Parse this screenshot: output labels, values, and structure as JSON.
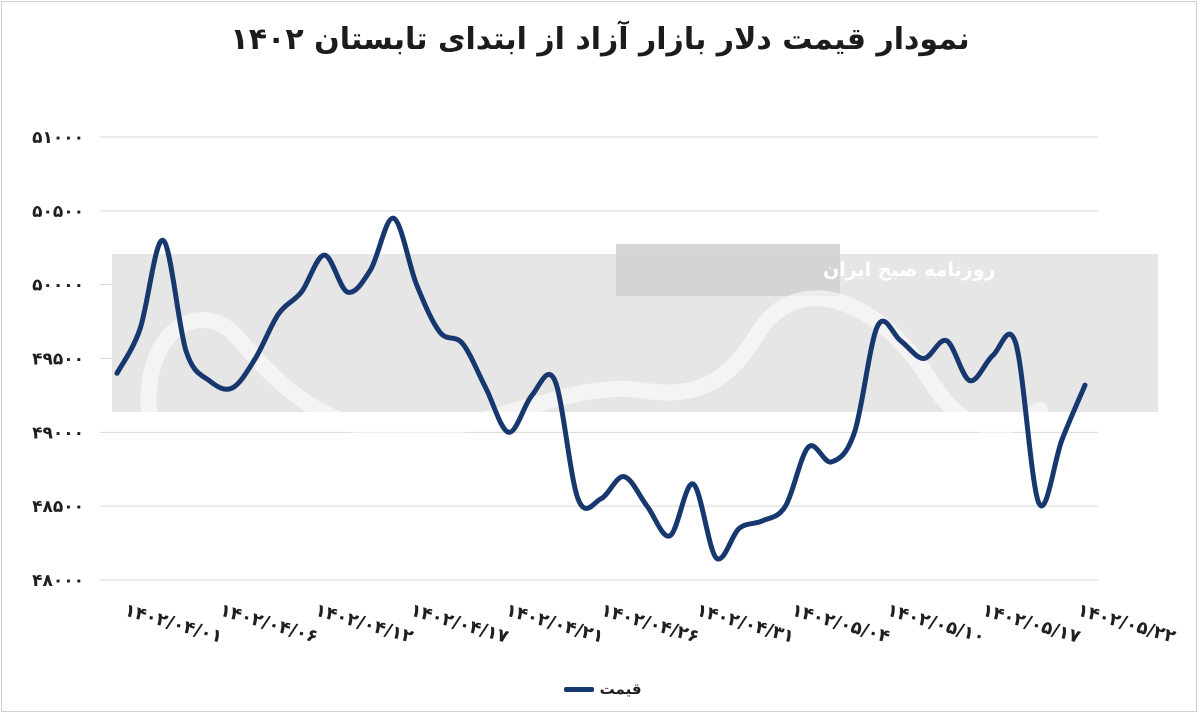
{
  "chart_data": {
    "type": "line",
    "title": "نمودار قیمت دلار بازار آزاد از ابتدای تابستان ۱۴۰۲",
    "xlabel": "",
    "ylabel": "",
    "ylim": [
      48000,
      51000
    ],
    "y_ticks": [
      "۴۸۰۰۰",
      "۴۸۵۰۰",
      "۴۹۰۰۰",
      "۴۹۵۰۰",
      "۵۰۰۰۰",
      "۵۰۵۰۰",
      "۵۱۰۰۰"
    ],
    "y_tick_values": [
      48000,
      48500,
      49000,
      49500,
      50000,
      50500,
      51000
    ],
    "x_ticks": [
      "۱۴۰۲/۰۴/۰۱",
      "۱۴۰۲/۰۴/۰۶",
      "۱۴۰۲/۰۴/۱۲",
      "۱۴۰۲/۰۴/۱۷",
      "۱۴۰۲/۰۴/۲۱",
      "۱۴۰۲/۰۴/۲۶",
      "۱۴۰۲/۰۴/۳۱",
      "۱۴۰۲/۰۵/۰۴",
      "۱۴۰۲/۰۵/۱۰",
      "۱۴۰۲/۰۵/۱۷",
      "۱۴۰۲/۰۵/۲۲"
    ],
    "grid": true,
    "legend_position": "bottom",
    "series": [
      {
        "name": "قیمت",
        "color": "#17386e",
        "values": [
          49400,
          49700,
          50300,
          49550,
          49350,
          49300,
          49500,
          49800,
          49950,
          50200,
          49950,
          50100,
          50450,
          50000,
          49680,
          49600,
          49300,
          49000,
          49250,
          49350,
          48550,
          48550,
          48700,
          48500,
          48300,
          48650,
          48150,
          48350,
          48400,
          48500,
          48900,
          48800,
          49000,
          49720,
          49620,
          49500,
          49620,
          49350,
          49520,
          49600,
          48520,
          48950,
          49320
        ]
      }
    ]
  },
  "watermark": {
    "banner_text": "روزنامه صبح ایران"
  }
}
